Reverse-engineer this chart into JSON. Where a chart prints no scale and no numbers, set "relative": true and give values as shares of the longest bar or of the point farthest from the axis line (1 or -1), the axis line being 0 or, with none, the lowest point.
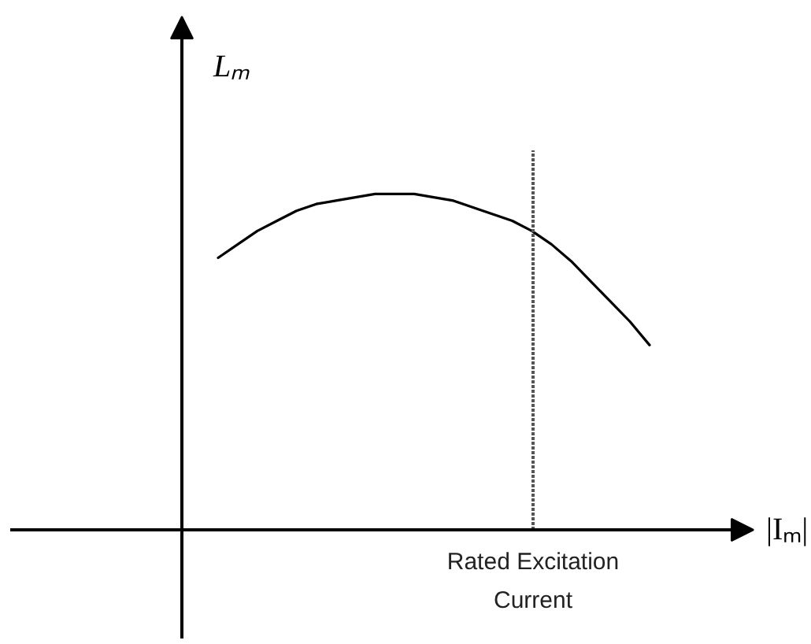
{
  "chart_data": {
    "type": "line",
    "relative": true,
    "xlabel": "|Iₘ|",
    "ylabel": "Lₘ",
    "categories": [
      null,
      null,
      null,
      null,
      null,
      null,
      null,
      null,
      null,
      null,
      null,
      null,
      null,
      null,
      null,
      null,
      null,
      null,
      null,
      null,
      null,
      null,
      null
    ],
    "values": [
      0.81,
      0.85,
      0.89,
      0.92,
      0.95,
      0.97,
      0.98,
      0.99,
      1.0,
      1.0,
      1.0,
      0.99,
      0.98,
      0.96,
      0.94,
      0.92,
      0.89,
      0.85,
      0.8,
      0.74,
      0.68,
      0.62,
      0.55
    ],
    "color": "#000000",
    "grid": false,
    "annotations": [
      "Rated Excitation Current"
    ]
  }
}
